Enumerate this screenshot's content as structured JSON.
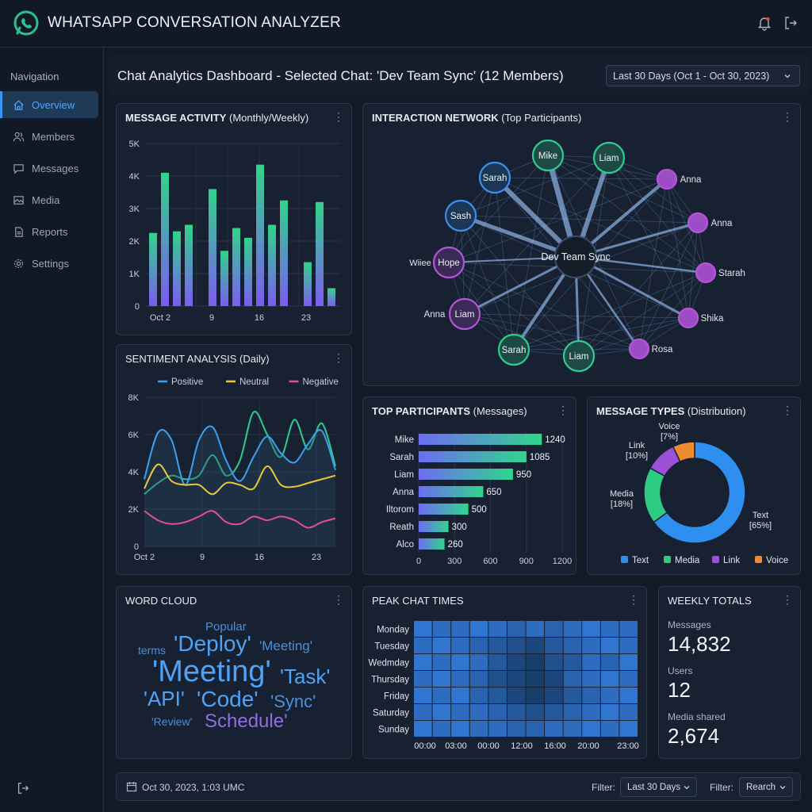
{
  "app": {
    "title": "WHATSAPP CONVERSATION ANALYZER"
  },
  "sidebar": {
    "heading": "Navigation",
    "items": [
      {
        "label": "Overview",
        "icon": "home-icon",
        "active": true
      },
      {
        "label": "Members",
        "icon": "users-icon"
      },
      {
        "label": "Messages",
        "icon": "message-icon"
      },
      {
        "label": "Media",
        "icon": "image-icon"
      },
      {
        "label": "Reports",
        "icon": "document-icon"
      },
      {
        "label": "Settings",
        "icon": "gear-icon"
      }
    ]
  },
  "header": {
    "title": "Chat Analytics Dashboard - Selected Chat: 'Dev Team Sync' (12 Members)",
    "date_range": "Last 30 Days (Oct 1 - Oct 30, 2023)"
  },
  "message_activity": {
    "title_bold": "MESSAGE ACTIVITY",
    "title_rest": " (Monthly/Weekly)"
  },
  "sentiment": {
    "title_bold": "SENTIMENT ANALYSIS",
    "title_rest": " (Daily)"
  },
  "network": {
    "title_bold": "INTERACTION NETWORK",
    "title_rest": " (Top Participants)",
    "center": "Dev Team Sync",
    "stray_label": "Wiiee",
    "nodes": [
      {
        "name": "Mike",
        "color": "#2ecc8f",
        "label_inside": true
      },
      {
        "name": "Liam",
        "color": "#2ecc8f",
        "label_inside": true
      },
      {
        "name": "Anna",
        "color": "#b356d6",
        "label_inside": false
      },
      {
        "name": "Anna",
        "color": "#b356d6",
        "label_inside": false
      },
      {
        "name": "Starah",
        "color": "#b356d6",
        "label_inside": false
      },
      {
        "name": "Shika",
        "color": "#b356d6",
        "label_inside": false
      },
      {
        "name": "Rosa",
        "color": "#b356d6",
        "label_inside": false
      },
      {
        "name": "Liam",
        "color": "#2ecc8f",
        "label_inside": true
      },
      {
        "name": "Sarah",
        "color": "#2ecc8f",
        "label_inside": true
      },
      {
        "name": "Liam",
        "color": "#b356d6",
        "label_inside": true
      },
      {
        "name": "Hope",
        "color": "#b356d6",
        "label_inside": true
      },
      {
        "name": "Sash",
        "color": "#3b8ff0",
        "label_inside": true
      },
      {
        "name": "Sarah",
        "color": "#3b8ff0",
        "label_inside": true
      }
    ],
    "outer_label_anna_left": "Anna"
  },
  "top_participants": {
    "title_bold": "TOP PARTICIPANTS",
    "title_rest": " (Messages)"
  },
  "message_types": {
    "title_bold": "MESSAGE TYPES",
    "title_rest": " (Distribution)"
  },
  "word_cloud": {
    "title": "WORD CLOUD",
    "words": [
      {
        "text": "Popular",
        "color": "#4a90d9",
        "size": 15
      },
      {
        "text": "terms",
        "color": "#4a90d9",
        "size": 14
      },
      {
        "text": "'Deploy'",
        "color": "#4da3f5",
        "size": 28
      },
      {
        "text": "'Meeting'",
        "color": "#4a90d9",
        "size": 17
      },
      {
        "text": "'Meeting'",
        "color": "#4da3f5",
        "size": 38
      },
      {
        "text": "'Task'",
        "color": "#4da3f5",
        "size": 26
      },
      {
        "text": "'API'",
        "color": "#4da3f5",
        "size": 26
      },
      {
        "text": "'Code'",
        "color": "#4da3f5",
        "size": 28
      },
      {
        "text": "'Sync'",
        "color": "#4a90d9",
        "size": 22
      },
      {
        "text": "'Review'",
        "color": "#4a90d9",
        "size": 14
      },
      {
        "text": "Schedule'",
        "color": "#8f6fe0",
        "size": 24
      }
    ]
  },
  "peak_times": {
    "title": "PEAK CHAT TIMES",
    "days": [
      "Monday",
      "Tuesday",
      "Wedmday",
      "Thursday",
      "Friday",
      "Saturday",
      "Sunday"
    ],
    "hours": [
      "00:00",
      "03:00",
      "00:00",
      "12:00",
      "16:00",
      "20:00",
      "23:00"
    ],
    "intensity": [
      [
        0.8,
        0.7,
        0.7,
        0.8,
        0.7,
        0.6,
        0.7,
        0.6,
        0.7,
        0.8,
        0.7,
        0.7
      ],
      [
        0.7,
        0.8,
        0.7,
        0.6,
        0.5,
        0.4,
        0.3,
        0.5,
        0.6,
        0.7,
        0.8,
        0.7
      ],
      [
        0.8,
        0.7,
        0.8,
        0.7,
        0.5,
        0.3,
        0.2,
        0.4,
        0.5,
        0.7,
        0.6,
        0.8
      ],
      [
        0.7,
        0.8,
        0.7,
        0.6,
        0.4,
        0.3,
        0.2,
        0.3,
        0.6,
        0.7,
        0.8,
        0.7
      ],
      [
        0.8,
        0.7,
        0.8,
        0.6,
        0.5,
        0.3,
        0.2,
        0.3,
        0.5,
        0.6,
        0.7,
        0.8
      ],
      [
        0.7,
        0.8,
        0.7,
        0.7,
        0.6,
        0.5,
        0.4,
        0.5,
        0.6,
        0.7,
        0.8,
        0.7
      ],
      [
        0.8,
        0.7,
        0.8,
        0.7,
        0.7,
        0.6,
        0.6,
        0.7,
        0.7,
        0.8,
        0.7,
        0.8
      ]
    ]
  },
  "weekly_totals": {
    "title": "WEEKLY TOTALS",
    "items": [
      {
        "label": "Messages",
        "value": "14,832"
      },
      {
        "label": "Users",
        "value": "12"
      },
      {
        "label": "Media shared",
        "value": "2,674"
      }
    ]
  },
  "footer": {
    "timestamp": "Oct 30, 2023, 1:03 UMC",
    "filter1_label": "Filter:",
    "filter1_value": "Last 30 Days",
    "filter2_label": "Filter:",
    "filter2_value": "Rearch"
  },
  "chart_data": [
    {
      "type": "bar",
      "title": "MESSAGE ACTIVITY (Monthly/Weekly)",
      "x_tick_labels": [
        "Oct 2",
        "9",
        "16",
        "23"
      ],
      "ylim": [
        0,
        5000
      ],
      "yticks": [
        "0",
        "1K",
        "2K",
        "3K",
        "4K",
        "5K"
      ],
      "values": [
        2250,
        4100,
        2300,
        2500,
        0,
        3600,
        1700,
        2400,
        2100,
        4350,
        2500,
        3250,
        0,
        1350,
        3200,
        550
      ],
      "gradient": [
        "#7c5cf0",
        "#31d38a"
      ]
    },
    {
      "type": "line",
      "title": "SENTIMENT ANALYSIS (Daily)",
      "x_tick_labels": [
        "Oct 2",
        "9",
        "16",
        "23"
      ],
      "ylim": [
        0,
        8000
      ],
      "yticks": [
        "0",
        "2K",
        "4K",
        "6K",
        "8K"
      ],
      "series": [
        {
          "name": "Positive",
          "color": "#3ba0f0",
          "values": [
            3600,
            6100,
            5700,
            3300,
            5700,
            6400,
            4600,
            3500,
            4800,
            5900,
            5000,
            4500,
            5500,
            6200,
            4100
          ]
        },
        {
          "name": "Neutral",
          "color": "#e8c93c",
          "values": [
            3100,
            4400,
            3500,
            3300,
            3300,
            2800,
            3400,
            3300,
            3100,
            4300,
            3300,
            3200,
            3400,
            3600,
            3800
          ]
        },
        {
          "name": "Negative",
          "color": "#e0508a",
          "values": [
            1900,
            1400,
            1200,
            1300,
            1600,
            1900,
            1300,
            1200,
            1600,
            1400,
            1600,
            1400,
            1000,
            1300,
            1500
          ]
        },
        {
          "name": "",
          "color": "#2ecc8f",
          "values": [
            2800,
            3400,
            3800,
            3600,
            3800,
            4900,
            3800,
            4600,
            7200,
            6000,
            4800,
            6800,
            5200,
            6600,
            4300
          ]
        }
      ]
    },
    {
      "type": "bar",
      "orientation": "horizontal",
      "title": "TOP PARTICIPANTS (Messages)",
      "categories": [
        "Mike",
        "Sarah",
        "Liam",
        "Anna",
        "Iltorom",
        "Reath",
        "Alco"
      ],
      "values": [
        1240,
        1085,
        950,
        650,
        500,
        300,
        260
      ],
      "xlim": [
        0,
        1200
      ],
      "xticks": [
        "0",
        "300",
        "600",
        "900",
        "1200"
      ],
      "gradient": [
        "#6d6cf2",
        "#2fd68c"
      ]
    },
    {
      "type": "pie",
      "title": "MESSAGE TYPES (Distribution)",
      "categories": [
        "Text",
        "Media",
        "Link",
        "Voice"
      ],
      "values": [
        65,
        18,
        10,
        7
      ],
      "labels": [
        "Text\n[65%]",
        "Media\n[18%]",
        "Link\n[10%]",
        "Voice\n[7%]"
      ],
      "colors": [
        "#2e8ff0",
        "#2ecc80",
        "#9b50d8",
        "#f08a2e"
      ]
    }
  ]
}
